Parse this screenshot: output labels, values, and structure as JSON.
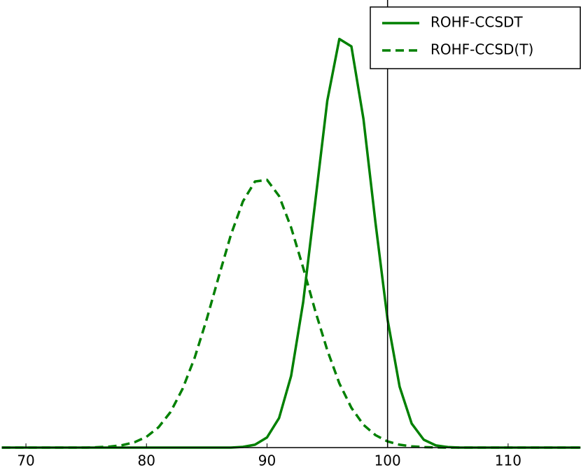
{
  "chart_data": {
    "type": "line",
    "x": [
      68,
      69,
      70,
      71,
      72,
      73,
      74,
      75,
      76,
      77,
      78,
      79,
      80,
      81,
      82,
      83,
      84,
      85,
      86,
      87,
      88,
      89,
      90,
      91,
      92,
      93,
      94,
      95,
      96,
      97,
      98,
      99,
      100,
      101,
      102,
      103,
      104,
      105,
      106,
      107,
      108,
      109,
      110,
      111,
      112,
      113,
      114,
      115,
      116
    ],
    "series": [
      {
        "name": "ROHF-CCSDT",
        "color": "#008000",
        "linestyle": "solid",
        "values": [
          0,
          0,
          0,
          0,
          0,
          0,
          0,
          0,
          0,
          0,
          0,
          0,
          0,
          0,
          0,
          0,
          0,
          0,
          0,
          0,
          0.0017,
          0.007,
          0.0245,
          0.0713,
          0.173,
          0.351,
          0.593,
          0.837,
          0.986,
          0.968,
          0.793,
          0.542,
          0.309,
          0.147,
          0.058,
          0.019,
          0.0053,
          0.0012,
          0,
          0,
          0,
          0,
          0,
          0,
          0,
          0,
          0,
          0,
          0
        ]
      },
      {
        "name": "ROHF-CCSD(T)",
        "color": "#008000",
        "linestyle": "dashed",
        "values": [
          0,
          0,
          0,
          0,
          0,
          0,
          0,
          0,
          0.001,
          0.0025,
          0.0059,
          0.0128,
          0.026,
          0.049,
          0.086,
          0.142,
          0.217,
          0.31,
          0.413,
          0.513,
          0.594,
          0.642,
          0.646,
          0.607,
          0.531,
          0.434,
          0.33,
          0.235,
          0.155,
          0.096,
          0.055,
          0.03,
          0.0148,
          0.0069,
          0.003,
          0.0012,
          0.0004,
          0,
          0,
          0,
          0,
          0,
          0,
          0,
          0,
          0,
          0,
          0,
          0
        ]
      }
    ],
    "vline": 100,
    "xlim": [
      68,
      116
    ],
    "xticks": [
      70,
      80,
      90,
      100,
      110
    ],
    "ylim": [
      0,
      1.08
    ],
    "legend": "upper right"
  }
}
